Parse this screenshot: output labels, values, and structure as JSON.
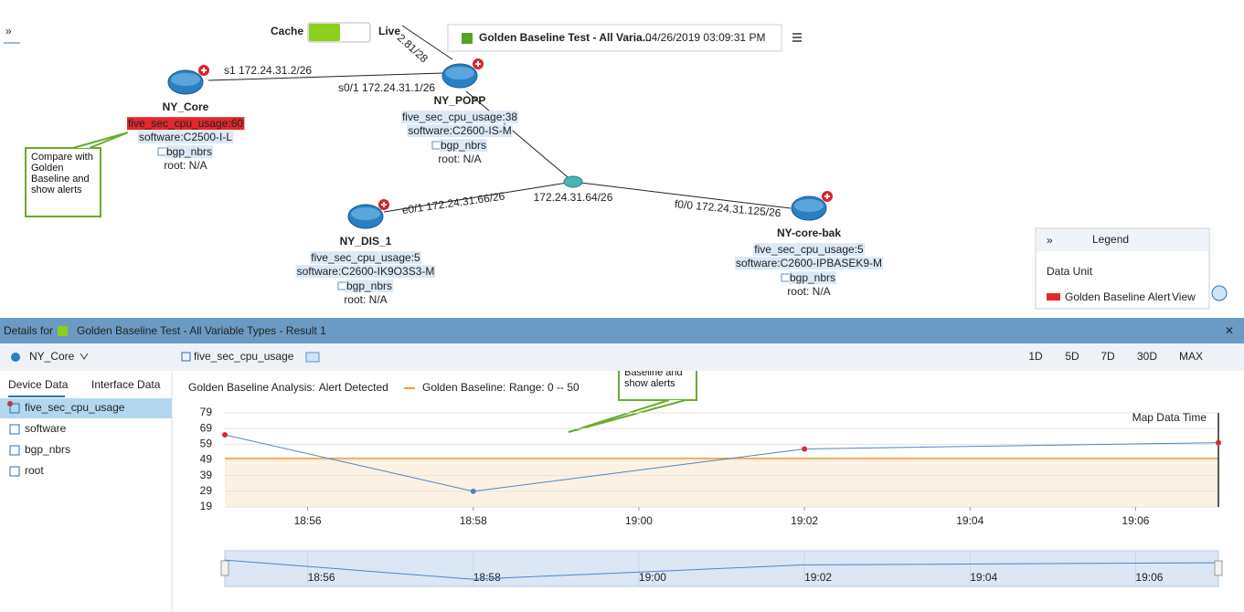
{
  "toolbar": {
    "cache": "Cache",
    "live": "Live",
    "test_name": "Golden Baseline Test - All Varia...",
    "timestamp": "04/26/2019 03:09:31 PM"
  },
  "map": {
    "nodes": [
      {
        "label": "NY_Core",
        "cpu": "five_sec_cpu_usage:60",
        "software": "software:C2500-I-L",
        "table": "bgp_nbrs",
        "root": "root: N/A"
      },
      {
        "label": "NY_POPP",
        "cpu": "five_sec_cpu_usage:38",
        "software": "software:C2600-IS-M",
        "table": "bgp_nbrs",
        "root": "root: N/A"
      },
      {
        "label": "NY_DIS_1",
        "cpu": "five_sec_cpu_usage:5",
        "software": "software:C2600-IK9O3S3-M",
        "table": "bgp_nbrs",
        "root": "root: N/A"
      },
      {
        "label": "NY-core-bak",
        "cpu": "five_sec_cpu_usage:5",
        "software": "software:C2600-IPBASEK9-M",
        "table": "bgp_nbrs",
        "root": "root: N/A"
      }
    ],
    "link_labels": [
      "s1 172.24.31.2/26",
      "s0/1 172.24.31.1/26",
      "2.81/28",
      "e0/1 172.24.31.66/26",
      "f0/0 172.24.31.125/26"
    ],
    "hub_label": "172.24.31.64/26"
  },
  "callouts": [
    "Compare with Golden Baseline and show alerts",
    "Historical data analysis with Golden Baseline and show alerts"
  ],
  "legend": {
    "title": "Legend",
    "data_unit": "Data Unit",
    "item": "Golden Baseline Alert",
    "view": "View"
  },
  "details": {
    "prefix": "Details for",
    "title": "Golden Baseline Test - All Variable Types - Result 1",
    "device": "NY_Core",
    "variable": "five_sec_cpu_usage",
    "ranges": [
      "1D",
      "5D",
      "7D",
      "30D",
      "MAX"
    ],
    "tabs": [
      "Device Data",
      "Interface Data"
    ],
    "items": [
      "five_sec_cpu_usage",
      "software",
      "bgp_nbrs",
      "root"
    ],
    "analysis_label": "Golden Baseline Analysis:",
    "analysis_status": "Alert Detected",
    "baseline_label": "Golden Baseline:",
    "range_label": "Range: 0 -- 50",
    "marker_label": "Map Data Time"
  },
  "chart_data": {
    "type": "line",
    "x": [
      "18:55",
      "18:58",
      "19:02",
      "19:07"
    ],
    "series": [
      {
        "color": "#4a86c8",
        "values": [
          65,
          29,
          56,
          60
        ]
      }
    ],
    "xlim": [
      "18:55",
      "19:07"
    ],
    "xticks": [
      "18:56",
      "18:58",
      "19:00",
      "19:02",
      "19:04",
      "19:06"
    ],
    "ylim": [
      19,
      79
    ],
    "yticks": [
      19,
      29,
      39,
      49,
      59,
      69,
      79
    ],
    "grid": true,
    "baseline_range": [
      0,
      50
    ],
    "baseline_color": "#f0a030",
    "alert_color": "#e0282e"
  }
}
